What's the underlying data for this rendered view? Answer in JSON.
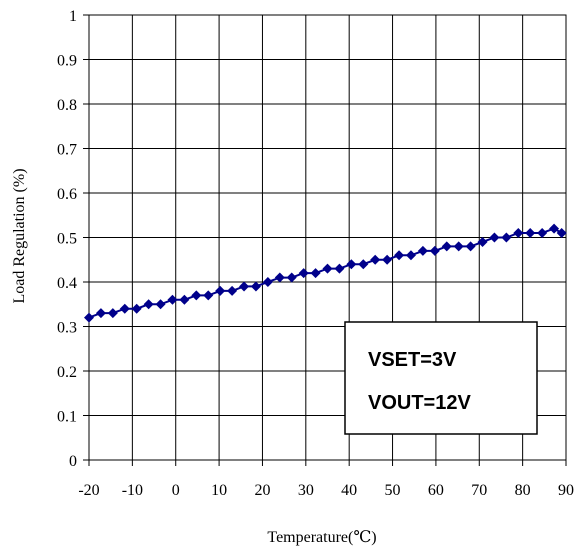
{
  "chart_data": {
    "type": "line",
    "title": "",
    "xlabel": "Temperature(℃)",
    "ylabel": "Load Regulation (%)",
    "xlim": [
      -20,
      90
    ],
    "ylim": [
      0,
      1
    ],
    "x_ticks": [
      "-20",
      "-10",
      "0",
      "10",
      "20",
      "30",
      "40",
      "50",
      "60",
      "70",
      "80",
      "90"
    ],
    "y_ticks": [
      "0",
      "0.1",
      "0.2",
      "0.3",
      "0.4",
      "0.5",
      "0.6",
      "0.7",
      "0.8",
      "0.9",
      "1"
    ],
    "grid": true,
    "series": [
      {
        "color": "#00008b",
        "marker": "diamond",
        "x": [
          -20,
          -17.25,
          -14.5,
          -11.75,
          -9,
          -6.25,
          -3.5,
          -0.75,
          2,
          4.75,
          7.5,
          10.25,
          13,
          15.75,
          18.5,
          21.25,
          24,
          26.75,
          29.5,
          32.25,
          35,
          37.75,
          40.5,
          43.25,
          46,
          48.75,
          51.5,
          54.25,
          57,
          59.75,
          62.5,
          65.25,
          68,
          70.75,
          73.5,
          76.25,
          79,
          81.75,
          84.5,
          87.25,
          89
        ],
        "y": [
          0.32,
          0.33,
          0.33,
          0.34,
          0.34,
          0.35,
          0.35,
          0.36,
          0.36,
          0.37,
          0.37,
          0.38,
          0.38,
          0.39,
          0.39,
          0.4,
          0.41,
          0.41,
          0.42,
          0.42,
          0.43,
          0.43,
          0.44,
          0.44,
          0.45,
          0.45,
          0.46,
          0.46,
          0.47,
          0.47,
          0.48,
          0.48,
          0.48,
          0.49,
          0.5,
          0.5,
          0.51,
          0.51,
          0.51,
          0.52,
          0.51
        ]
      }
    ],
    "annotation_lines": [
      "VSET=3V",
      "VOUT=12V"
    ]
  }
}
